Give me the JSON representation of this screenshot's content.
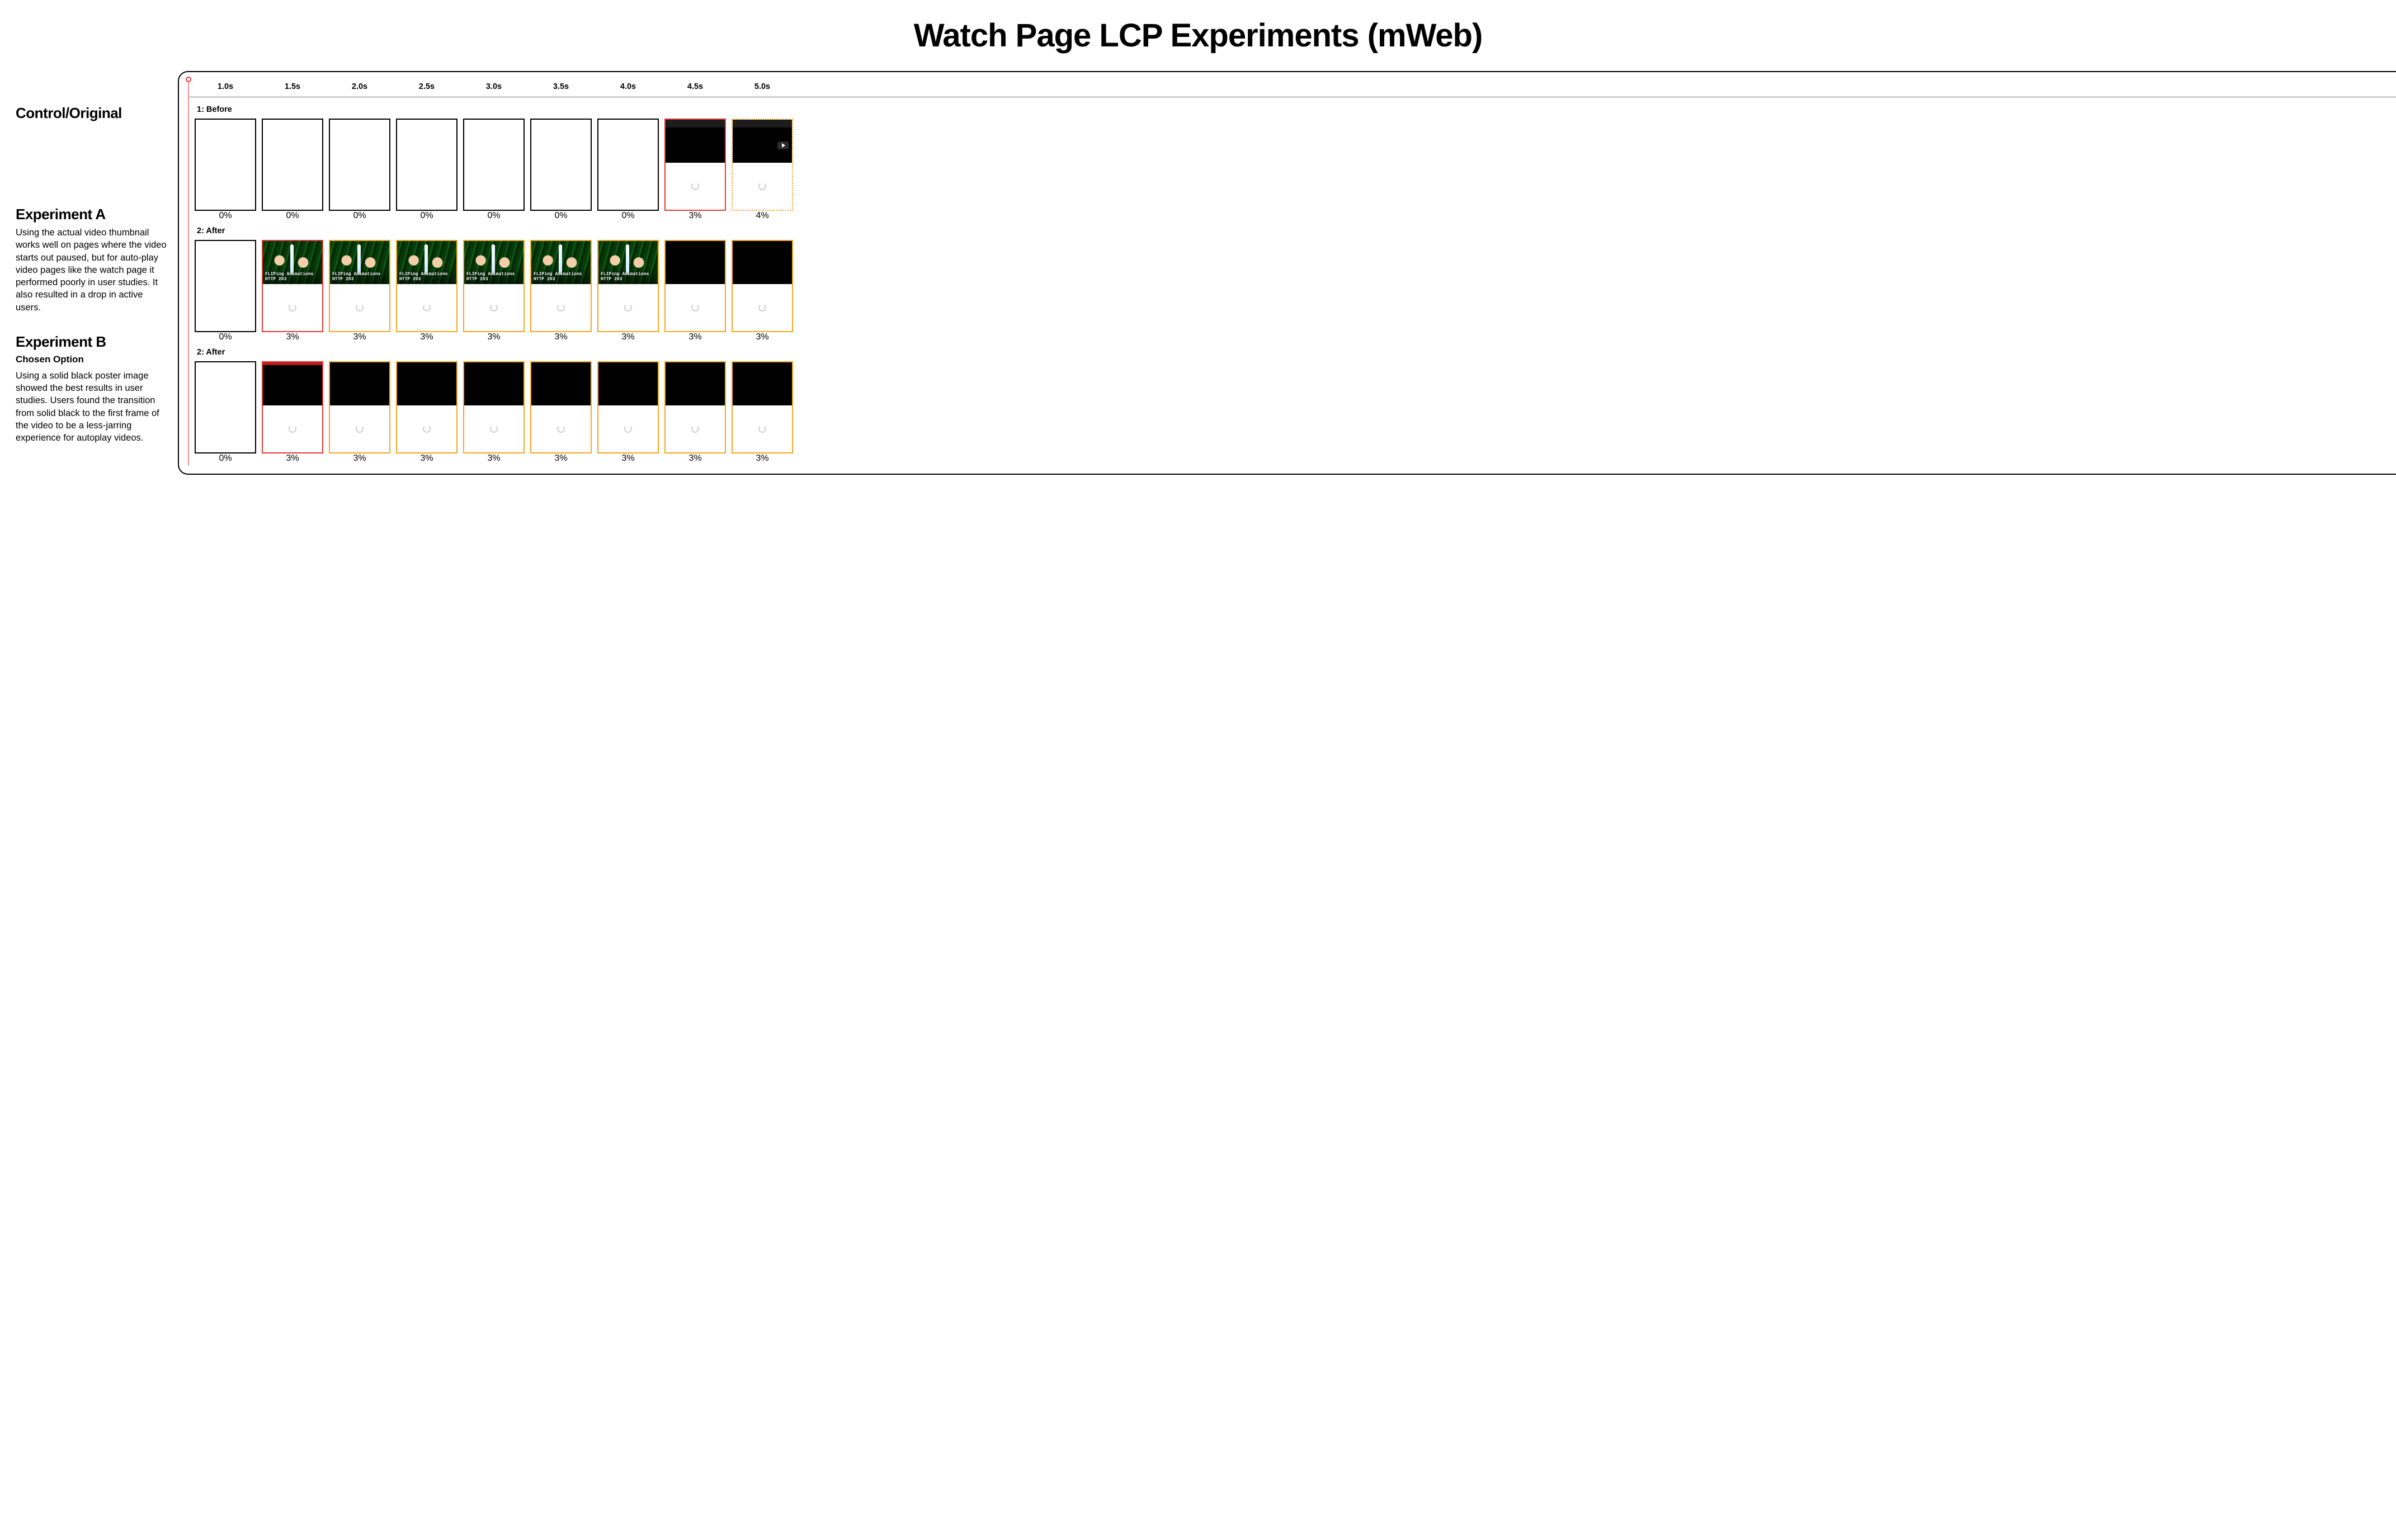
{
  "title": "Watch Page LCP Experiments (mWeb)",
  "colors": {
    "border_black": "#000000",
    "border_red": "#e53935",
    "border_yellow": "#f5a623",
    "border_yellow_dotted": "#f5a623",
    "thumb_bg": "#0c5a12",
    "panel_border": "#000000"
  },
  "sidebar": {
    "control": {
      "heading": "Control/Original"
    },
    "expA": {
      "heading": "Experiment A",
      "body": "Using the actual video thumbnail works well on pages where the video starts out paused, but for auto-play video pages like the watch page it performed poorly in user studies. It also resulted in a drop in active users."
    },
    "expB": {
      "heading": "Experiment B",
      "sub": "Chosen Option",
      "body": "Using a solid black poster image showed the best results in user studies. Users found the transition from solid black to the first frame of the video to be a less-jarring experience for autoplay videos."
    }
  },
  "timeline": [
    "1.0s",
    "1.5s",
    "2.0s",
    "2.5s",
    "3.0s",
    "3.5s",
    "4.0s",
    "4.5s",
    "5.0s"
  ],
  "thumb_caption": {
    "line1": "FLIPing Animations",
    "line2": "HTTP 203"
  },
  "rows": {
    "before": {
      "label": "1: Before",
      "frames": [
        {
          "border": "#000000",
          "style": "solid",
          "content": "blank",
          "pct": "0%"
        },
        {
          "border": "#000000",
          "style": "solid",
          "content": "blank",
          "pct": "0%"
        },
        {
          "border": "#000000",
          "style": "solid",
          "content": "blank",
          "pct": "0%"
        },
        {
          "border": "#000000",
          "style": "solid",
          "content": "blank",
          "pct": "0%"
        },
        {
          "border": "#000000",
          "style": "solid",
          "content": "blank",
          "pct": "0%"
        },
        {
          "border": "#000000",
          "style": "solid",
          "content": "blank",
          "pct": "0%"
        },
        {
          "border": "#000000",
          "style": "solid",
          "content": "blank",
          "pct": "0%"
        },
        {
          "border": "#e53935",
          "style": "solid",
          "content": "black-spinner",
          "darkbar": true,
          "pct": "3%"
        },
        {
          "border": "#f5a623",
          "style": "dotted",
          "content": "black-play-spinner",
          "darkbar": true,
          "pct": "4%"
        }
      ]
    },
    "afterA": {
      "label": "2: After",
      "frames": [
        {
          "border": "#000000",
          "style": "solid",
          "content": "blank",
          "pct": "0%"
        },
        {
          "border": "#e53935",
          "style": "solid",
          "content": "thumb-spinner",
          "pct": "3%"
        },
        {
          "border": "#f5a623",
          "style": "solid",
          "content": "thumb-spinner",
          "pct": "3%"
        },
        {
          "border": "#f5a623",
          "style": "solid",
          "content": "thumb-spinner",
          "pct": "3%"
        },
        {
          "border": "#f5a623",
          "style": "solid",
          "content": "thumb-spinner",
          "pct": "3%"
        },
        {
          "border": "#f5a623",
          "style": "solid",
          "content": "thumb-spinner",
          "pct": "3%"
        },
        {
          "border": "#f5a623",
          "style": "solid",
          "content": "thumb-spinner",
          "pct": "3%"
        },
        {
          "border": "#f5a623",
          "style": "solid",
          "content": "black-spinner",
          "pct": "3%"
        },
        {
          "border": "#f5a623",
          "style": "solid",
          "content": "black-spinner",
          "pct": "3%"
        }
      ]
    },
    "afterB": {
      "label": "2: After",
      "frames": [
        {
          "border": "#000000",
          "style": "solid",
          "content": "blank",
          "pct": "0%"
        },
        {
          "border": "#e53935",
          "style": "solid",
          "content": "black-spinner",
          "redbar": true,
          "pct": "3%"
        },
        {
          "border": "#f5a623",
          "style": "solid",
          "content": "black-spinner",
          "pct": "3%"
        },
        {
          "border": "#f5a623",
          "style": "solid",
          "content": "black-spinner",
          "pct": "3%"
        },
        {
          "border": "#f5a623",
          "style": "solid",
          "content": "black-spinner",
          "pct": "3%"
        },
        {
          "border": "#f5a623",
          "style": "solid",
          "content": "black-spinner",
          "pct": "3%"
        },
        {
          "border": "#f5a623",
          "style": "solid",
          "content": "black-spinner",
          "pct": "3%"
        },
        {
          "border": "#f5a623",
          "style": "solid",
          "content": "black-spinner",
          "pct": "3%"
        },
        {
          "border": "#f5a623",
          "style": "solid",
          "content": "black-spinner",
          "pct": "3%"
        }
      ]
    }
  }
}
